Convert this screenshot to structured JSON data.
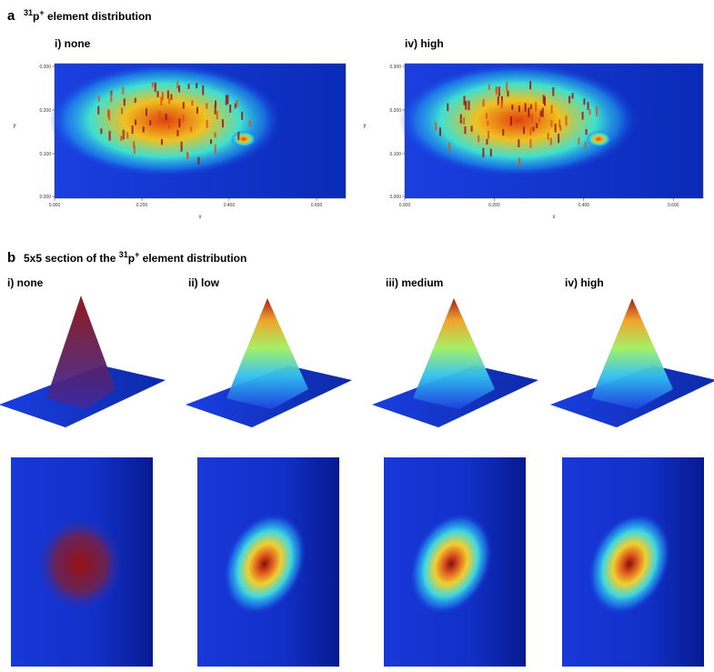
{
  "panel_a": {
    "letter": "a",
    "title": {
      "sup": "31",
      "base": "p",
      "charge": "+",
      "rest": " element distribution"
    },
    "plots": [
      {
        "label": "i) none",
        "yticks": [
          "0.300",
          "0.200",
          "0.100",
          "0.000"
        ],
        "xticks": [
          "0.000",
          "0.200",
          "0.400",
          "0.600"
        ],
        "xlabel": "x",
        "ylabel": "y"
      },
      {
        "label": "iv) high",
        "yticks": [
          "0.300",
          "0.200",
          "0.100",
          "0.000"
        ],
        "xticks": [
          "0.000",
          "0.200",
          "0.400",
          "0.600"
        ],
        "xlabel": "x",
        "ylabel": "y"
      }
    ]
  },
  "panel_b": {
    "letter": "b",
    "title": {
      "prefix": "5x5 section of the ",
      "sup": "31",
      "base": "p",
      "charge": "+",
      "rest": " element distribution"
    },
    "labels": [
      "i) none",
      "ii) low",
      "iii) medium",
      "iv) high"
    ]
  }
}
